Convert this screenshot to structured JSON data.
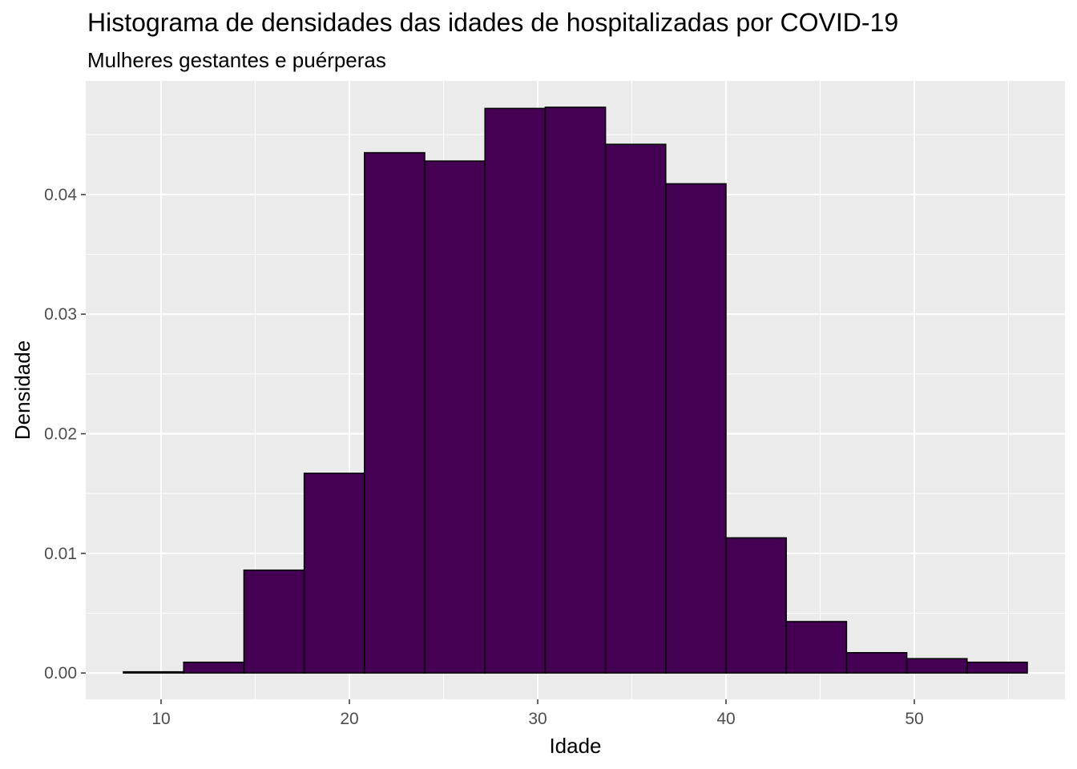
{
  "chart_data": {
    "type": "bar",
    "title": "Histograma de densidades das idades de hospitalizadas por COVID-19",
    "subtitle": "Mulheres gestantes e puérperas",
    "xlabel": "Idade",
    "ylabel": "Densidade",
    "xlim": [
      6,
      58
    ],
    "ylim": [
      -0.0022,
      0.0495
    ],
    "x_ticks": [
      10,
      20,
      30,
      40,
      50
    ],
    "y_ticks": [
      0.0,
      0.01,
      0.02,
      0.03,
      0.04
    ],
    "x_tick_labels": [
      "10",
      "20",
      "30",
      "40",
      "50"
    ],
    "y_tick_labels": [
      "0.00",
      "0.01",
      "0.02",
      "0.03",
      "0.04"
    ],
    "grid": true,
    "panel_background": "#ebebeb",
    "bar_fill": "#440154",
    "bar_outline": "#000000",
    "bins": [
      {
        "x0": 8.0,
        "x1": 11.2,
        "density": 0.0001
      },
      {
        "x0": 11.2,
        "x1": 14.4,
        "density": 0.0009
      },
      {
        "x0": 14.4,
        "x1": 17.6,
        "density": 0.0086
      },
      {
        "x0": 17.6,
        "x1": 20.8,
        "density": 0.0167
      },
      {
        "x0": 20.8,
        "x1": 24.0,
        "density": 0.0435
      },
      {
        "x0": 24.0,
        "x1": 27.2,
        "density": 0.0428
      },
      {
        "x0": 27.2,
        "x1": 30.4,
        "density": 0.0472
      },
      {
        "x0": 30.4,
        "x1": 33.6,
        "density": 0.0473
      },
      {
        "x0": 33.6,
        "x1": 36.8,
        "density": 0.0442
      },
      {
        "x0": 36.8,
        "x1": 40.0,
        "density": 0.0409
      },
      {
        "x0": 40.0,
        "x1": 43.2,
        "density": 0.0113
      },
      {
        "x0": 43.2,
        "x1": 46.4,
        "density": 0.0043
      },
      {
        "x0": 46.4,
        "x1": 49.6,
        "density": 0.0017
      },
      {
        "x0": 49.6,
        "x1": 52.8,
        "density": 0.0012
      },
      {
        "x0": 52.8,
        "x1": 56.0,
        "density": 0.0009
      }
    ]
  }
}
